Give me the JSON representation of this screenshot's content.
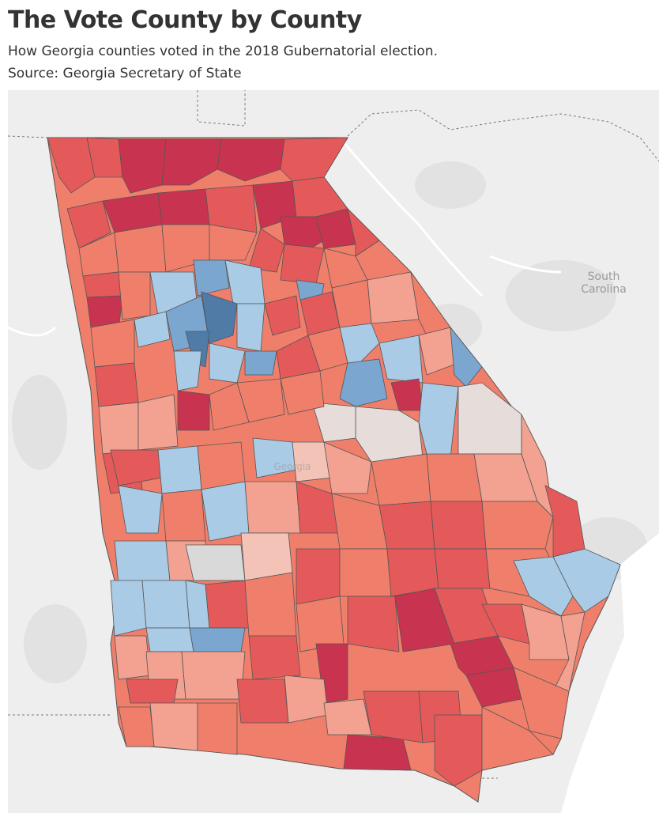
{
  "header": {
    "title": "The Vote County by County",
    "subtitle": "How Georgia counties voted in the 2018 Gubernatorial election.",
    "source": "Source: Georgia Secretary of State"
  },
  "map": {
    "region": "Georgia",
    "neighbor_labels": {
      "south_carolina_line1": "South",
      "south_carolina_line2": "Carolina",
      "georgia": "Georgia"
    },
    "colors": {
      "strong_republican": "#c8344f",
      "republican": "#e45a5a",
      "lean_republican": "#ef7f6b",
      "slight_republican": "#f3a190",
      "tossup_republican": "#f2c3b6",
      "tossup": "#e6dcd9",
      "neutral": "#d9d9d9",
      "lean_democrat": "#a9cbe6",
      "democrat": "#7aa6cf",
      "strong_democrat": "#4f7ba6",
      "land": "#eeeeee",
      "water": "#ffffff",
      "border": "#555555"
    }
  }
}
